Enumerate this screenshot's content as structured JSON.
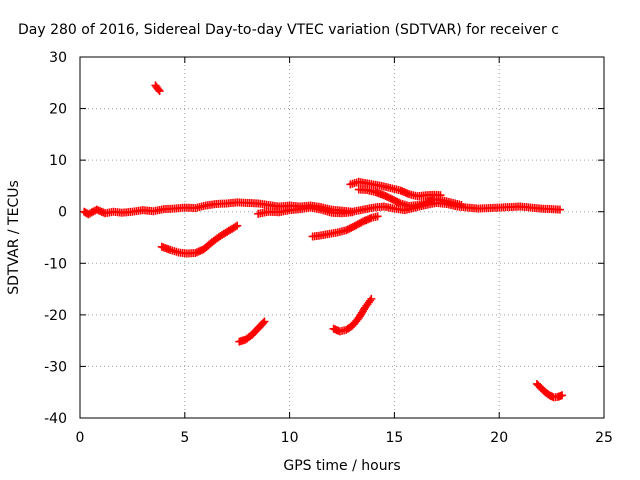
{
  "chart_data": {
    "type": "scatter",
    "title": "Day 280 of 2016, Sidereal Day-to-day VTEC variation (SDTVAR) for receiver c",
    "xlabel": "GPS time / hours",
    "ylabel": "SDTVAR / TECUs",
    "xlim": [
      0,
      25
    ],
    "ylim": [
      -40,
      30
    ],
    "xticks": [
      "0",
      "5",
      "10",
      "15",
      "20",
      "25"
    ],
    "yticks": [
      "-40",
      "-30",
      "-20",
      "-10",
      "0",
      "10",
      "20",
      "30"
    ],
    "grid": true,
    "grid_style": "dotted",
    "marker": "plus",
    "series_color": "#ff0000",
    "series": [
      {
        "values": [
          [
            [
              0.2,
              0.0
            ],
            [
              0.4,
              -0.5
            ],
            [
              0.8,
              0.4
            ],
            [
              1.2,
              -0.3
            ],
            [
              1.6,
              0.0
            ],
            [
              2.0,
              -0.2
            ],
            [
              2.5,
              0.0
            ],
            [
              3.0,
              0.3
            ],
            [
              3.5,
              0.1
            ],
            [
              4.0,
              0.5
            ],
            [
              4.5,
              0.6
            ],
            [
              5.0,
              0.8
            ],
            [
              5.5,
              0.7
            ],
            [
              6.0,
              1.2
            ],
            [
              6.5,
              1.5
            ],
            [
              7.0,
              1.6
            ],
            [
              7.5,
              1.8
            ],
            [
              8.0,
              1.7
            ],
            [
              8.5,
              1.6
            ],
            [
              9.0,
              1.3
            ],
            [
              9.5,
              1.0
            ],
            [
              10.0,
              1.2
            ],
            [
              10.5,
              1.0
            ],
            [
              11.0,
              1.2
            ],
            [
              11.5,
              0.9
            ],
            [
              12.0,
              0.4
            ],
            [
              12.5,
              0.2
            ],
            [
              13.0,
              0.0
            ],
            [
              13.5,
              0.4
            ],
            [
              14.0,
              0.8
            ],
            [
              14.5,
              1.0
            ],
            [
              15.0,
              0.6
            ],
            [
              15.5,
              0.3
            ],
            [
              16.0,
              0.8
            ],
            [
              16.5,
              1.3
            ],
            [
              17.0,
              1.7
            ],
            [
              17.5,
              1.5
            ],
            [
              18.0,
              1.0
            ],
            [
              18.5,
              0.8
            ],
            [
              19.0,
              0.6
            ],
            [
              19.5,
              0.7
            ],
            [
              20.0,
              0.8
            ],
            [
              20.5,
              0.9
            ],
            [
              21.0,
              1.0
            ],
            [
              21.5,
              0.8
            ],
            [
              22.0,
              0.6
            ],
            [
              22.5,
              0.5
            ],
            [
              22.9,
              0.4
            ]
          ],
          [
            [
              8.5,
              -0.4
            ],
            [
              9.0,
              0.0
            ],
            [
              9.5,
              -0.1
            ],
            [
              10.0,
              0.3
            ],
            [
              10.5,
              0.5
            ],
            [
              11.0,
              0.8
            ],
            [
              11.5,
              0.4
            ],
            [
              12.0,
              -0.2
            ],
            [
              12.5,
              -0.3
            ],
            [
              13.0,
              -0.1
            ]
          ],
          [
            [
              3.6,
              24.5
            ],
            [
              3.7,
              23.9
            ],
            [
              3.8,
              23.4
            ]
          ],
          [
            [
              3.9,
              -6.8
            ],
            [
              4.3,
              -7.4
            ],
            [
              4.7,
              -7.9
            ],
            [
              5.1,
              -8.1
            ],
            [
              5.5,
              -8.0
            ],
            [
              5.9,
              -7.3
            ],
            [
              6.3,
              -5.9
            ],
            [
              6.7,
              -4.7
            ],
            [
              7.1,
              -3.7
            ],
            [
              7.5,
              -2.7
            ]
          ],
          [
            [
              7.6,
              -25.2
            ],
            [
              7.9,
              -24.8
            ],
            [
              8.2,
              -23.9
            ],
            [
              8.5,
              -22.6
            ],
            [
              8.8,
              -21.3
            ]
          ],
          [
            [
              11.1,
              -4.8
            ],
            [
              11.5,
              -4.6
            ],
            [
              11.9,
              -4.3
            ],
            [
              12.3,
              -4.0
            ],
            [
              12.7,
              -3.6
            ],
            [
              13.1,
              -2.8
            ],
            [
              13.5,
              -1.9
            ],
            [
              13.9,
              -1.2
            ],
            [
              14.2,
              -0.9
            ]
          ],
          [
            [
              12.1,
              -22.7
            ],
            [
              12.4,
              -23.2
            ],
            [
              12.7,
              -22.9
            ],
            [
              13.0,
              -22.1
            ],
            [
              13.3,
              -20.6
            ],
            [
              13.6,
              -18.6
            ],
            [
              13.9,
              -16.9
            ]
          ],
          [
            [
              12.9,
              5.3
            ],
            [
              13.3,
              5.8
            ],
            [
              13.7,
              5.5
            ],
            [
              14.1,
              5.2
            ],
            [
              14.5,
              4.9
            ],
            [
              14.9,
              4.5
            ],
            [
              15.3,
              4.1
            ],
            [
              15.7,
              3.4
            ],
            [
              16.1,
              3.0
            ],
            [
              16.5,
              3.2
            ],
            [
              16.9,
              3.3
            ],
            [
              17.2,
              3.2
            ]
          ],
          [
            [
              13.3,
              4.3
            ],
            [
              13.7,
              4.2
            ],
            [
              14.1,
              3.8
            ],
            [
              14.5,
              3.2
            ],
            [
              14.9,
              2.4
            ],
            [
              15.3,
              1.6
            ],
            [
              15.7,
              1.1
            ],
            [
              16.1,
              1.3
            ],
            [
              16.5,
              1.8
            ],
            [
              16.9,
              2.4
            ],
            [
              17.3,
              2.2
            ],
            [
              17.7,
              1.8
            ],
            [
              18.2,
              1.3
            ]
          ],
          [
            [
              21.8,
              -33.4
            ],
            [
              22.0,
              -34.2
            ],
            [
              22.2,
              -35.0
            ],
            [
              22.4,
              -35.6
            ],
            [
              22.6,
              -36.0
            ],
            [
              22.8,
              -35.9
            ],
            [
              23.0,
              -35.6
            ]
          ]
        ]
      }
    ]
  }
}
